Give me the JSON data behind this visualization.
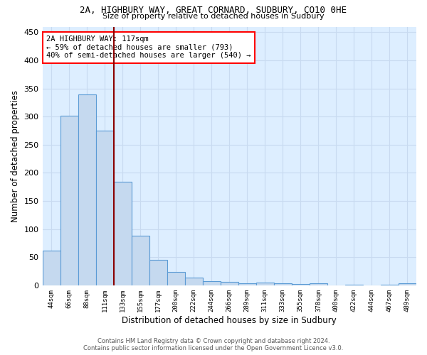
{
  "title": "2A, HIGHBURY WAY, GREAT CORNARD, SUDBURY, CO10 0HE",
  "subtitle": "Size of property relative to detached houses in Sudbury",
  "xlabel": "Distribution of detached houses by size in Sudbury",
  "ylabel": "Number of detached properties",
  "categories": [
    "44sqm",
    "66sqm",
    "88sqm",
    "111sqm",
    "133sqm",
    "155sqm",
    "177sqm",
    "200sqm",
    "222sqm",
    "244sqm",
    "266sqm",
    "289sqm",
    "311sqm",
    "333sqm",
    "355sqm",
    "378sqm",
    "400sqm",
    "422sqm",
    "444sqm",
    "467sqm",
    "489sqm"
  ],
  "values": [
    62,
    302,
    340,
    275,
    184,
    88,
    45,
    24,
    14,
    7,
    6,
    3,
    5,
    3,
    2,
    3,
    0,
    1,
    0,
    1,
    3
  ],
  "bar_color": "#c5d9ef",
  "bar_edge_color": "#5b9bd5",
  "background_color": "#ddeeff",
  "grid_color": "#c8daf0",
  "vline_color": "#8b0000",
  "vline_x_index": 3,
  "annotation_text": "2A HIGHBURY WAY: 117sqm\n← 59% of detached houses are smaller (793)\n40% of semi-detached houses are larger (540) →",
  "annotation_box_color": "white",
  "annotation_box_edge_color": "red",
  "footer_line1": "Contains HM Land Registry data © Crown copyright and database right 2024.",
  "footer_line2": "Contains public sector information licensed under the Open Government Licence v3.0.",
  "ylim": [
    0,
    460
  ],
  "yticks": [
    0,
    50,
    100,
    150,
    200,
    250,
    300,
    350,
    400,
    450
  ]
}
